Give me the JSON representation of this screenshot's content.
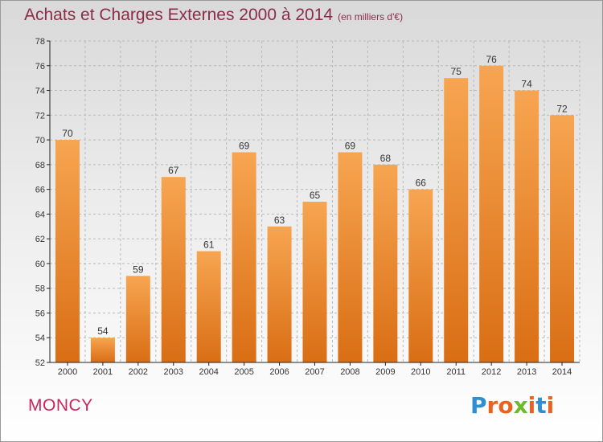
{
  "title": "Achats et Charges Externes 2000 à 2014",
  "subtitle": "(en milliers d'€)",
  "commune": "MONCY",
  "logo": {
    "letters": [
      "P",
      "r",
      "o",
      "x",
      "i",
      "t",
      "i"
    ],
    "colors": [
      "#2e8fd4",
      "#e8641e",
      "#e8641e",
      "#6dbb2c",
      "#e8641e",
      "#2e8fd4",
      "#e8641e"
    ]
  },
  "colors": {
    "bar_top": "#f7a551",
    "bar_bottom": "#d96e14",
    "grid": "#b9b9b9",
    "axis": "#222222",
    "label": "#333333"
  },
  "chart_data": {
    "type": "bar",
    "categories": [
      "2000",
      "2001",
      "2002",
      "2003",
      "2004",
      "2005",
      "2006",
      "2007",
      "2008",
      "2009",
      "2010",
      "2011",
      "2012",
      "2013",
      "2014"
    ],
    "values": [
      70,
      54,
      59,
      67,
      61,
      69,
      63,
      65,
      69,
      68,
      66,
      75,
      76,
      74,
      72
    ],
    "title": "Achats et Charges Externes 2000 à 2014",
    "ylim": [
      52,
      78
    ],
    "yticks": [
      52,
      54,
      56,
      58,
      60,
      62,
      64,
      66,
      68,
      70,
      72,
      74,
      76,
      78
    ],
    "grid": true,
    "data_labels": true
  }
}
